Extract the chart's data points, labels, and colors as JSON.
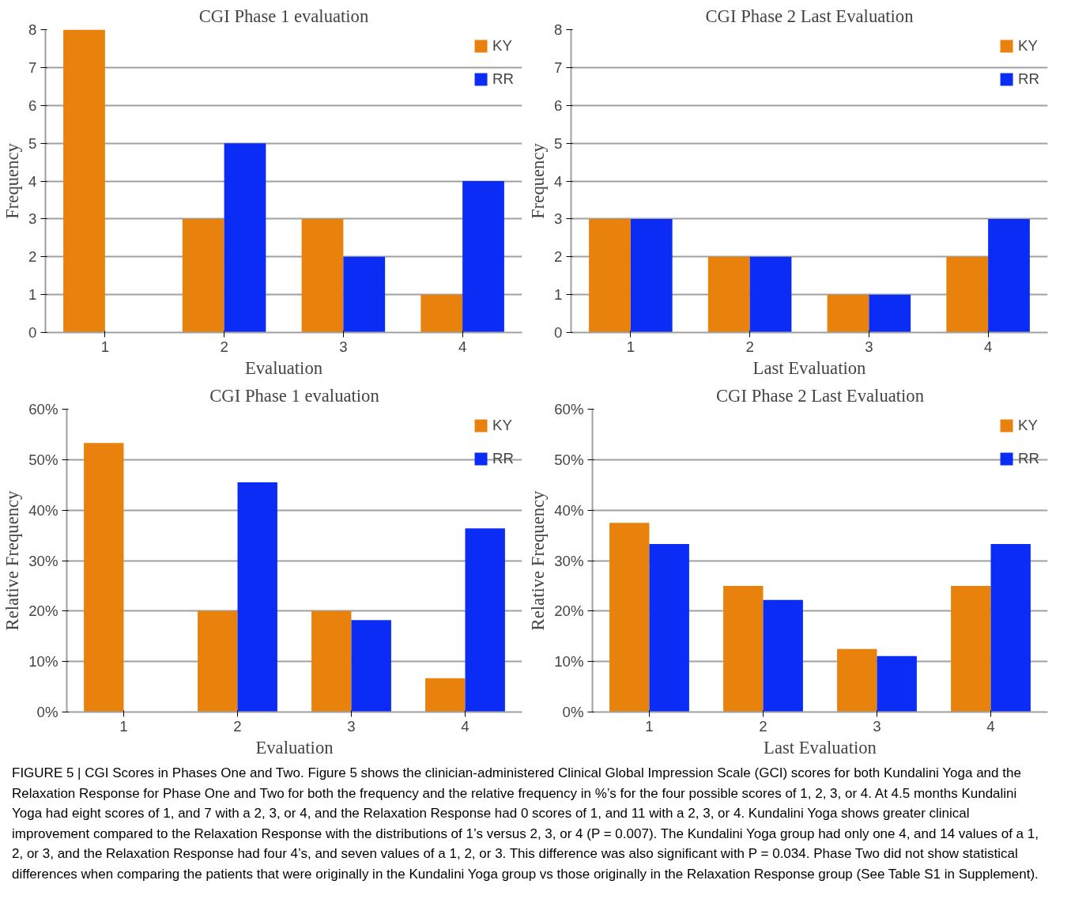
{
  "chart_data": [
    {
      "type": "bar",
      "title": "CGI Phase 1 evaluation",
      "xlabel": "Evaluation",
      "ylabel": "Frequency",
      "categories": [
        "1",
        "2",
        "3",
        "4"
      ],
      "series": [
        {
          "name": "KY",
          "color": "#e8820c",
          "values": [
            8,
            3,
            3,
            1
          ]
        },
        {
          "name": "RR",
          "color": "#0a2cf5",
          "values": [
            0,
            5,
            2,
            4
          ]
        }
      ],
      "ylim": [
        0,
        8
      ],
      "yticks": [
        0,
        1,
        2,
        3,
        4,
        5,
        6,
        7,
        8
      ],
      "grid": "y",
      "legend": "top right"
    },
    {
      "type": "bar",
      "title": "CGI Phase 2 Last Evaluation",
      "xlabel": "Last Evaluation",
      "ylabel": "Frequency",
      "categories": [
        "1",
        "2",
        "3",
        "4"
      ],
      "series": [
        {
          "name": "KY",
          "color": "#e8820c",
          "values": [
            3,
            2,
            1,
            2
          ]
        },
        {
          "name": "RR",
          "color": "#0a2cf5",
          "values": [
            3,
            2,
            1,
            3
          ]
        }
      ],
      "ylim": [
        0,
        8
      ],
      "yticks": [
        0,
        1,
        2,
        3,
        4,
        5,
        6,
        7,
        8
      ],
      "grid": "y",
      "legend": "top right"
    },
    {
      "type": "bar",
      "title": "CGI Phase 1 evaluation",
      "xlabel": "Evaluation",
      "ylabel": "Relative Frequency",
      "categories": [
        "1",
        "2",
        "3",
        "4"
      ],
      "series": [
        {
          "name": "KY",
          "color": "#e8820c",
          "values": [
            53.3,
            20,
            20,
            6.7
          ]
        },
        {
          "name": "RR",
          "color": "#0a2cf5",
          "values": [
            0,
            45.5,
            18.2,
            36.4
          ]
        }
      ],
      "ylim": [
        0,
        60
      ],
      "yticks": [
        {
          "value": 0,
          "label": "0%"
        },
        {
          "value": 10,
          "label": "10%"
        },
        {
          "value": 20,
          "label": "20%"
        },
        {
          "value": 30,
          "label": "30%"
        },
        {
          "value": 40,
          "label": "40%"
        },
        {
          "value": 50,
          "label": "50%"
        },
        {
          "value": 60,
          "label": "60%"
        }
      ],
      "grid": "y",
      "legend": "top right"
    },
    {
      "type": "bar",
      "title": "CGI Phase 2 Last Evaluation",
      "xlabel": "Last Evaluation",
      "ylabel": "Relative Frequency",
      "categories": [
        "1",
        "2",
        "3",
        "4"
      ],
      "series": [
        {
          "name": "KY",
          "color": "#e8820c",
          "values": [
            37.5,
            25,
            12.5,
            25
          ]
        },
        {
          "name": "RR",
          "color": "#0a2cf5",
          "values": [
            33.3,
            22.2,
            11.1,
            33.3
          ]
        }
      ],
      "ylim": [
        0,
        60
      ],
      "yticks": [
        {
          "value": 0,
          "label": "0%"
        },
        {
          "value": 10,
          "label": "10%"
        },
        {
          "value": 20,
          "label": "20%"
        },
        {
          "value": 30,
          "label": "30%"
        },
        {
          "value": 40,
          "label": "40%"
        },
        {
          "value": 50,
          "label": "50%"
        },
        {
          "value": 60,
          "label": "60%"
        }
      ],
      "grid": "y",
      "legend": "top right"
    },
    {
      "type": "other",
      "annotations": [
        "FIGURE 5 | CGI Scores in Phases One and Two. Figure 5 shows the clinician-administered Clinical Global Impression Scale (GCI) scores for both Kundalini Yoga and the Relaxation Response for Phase One and Two for both the frequency and the relative frequency in %’s for the four possible scores of 1, 2, 3, or 4. At 4.5 months Kundalini Yoga had eight scores of 1, and 7 with a 2, 3, or 4, and the Relaxation Response had 0 scores of 1, and 11 with a 2, 3, or 4. Kundalini Yoga shows greater clinical improvement compared to the Relaxation Response with the distributions of 1’s versus 2, 3, or 4 (P = 0.007). The Kundalini Yoga group had only one 4, and 14 values of a 1, 2, or 3, and the Relaxation Response had four 4’s, and seven values of a 1, 2, or 3. This difference was also significant with P = 0.034. Phase Two did not show statistical differences when comparing the patients that were originally in the Kundalini Yoga group vs those originally in the Relaxation Response group (See Table S1 in Supplement)."
      ]
    }
  ]
}
